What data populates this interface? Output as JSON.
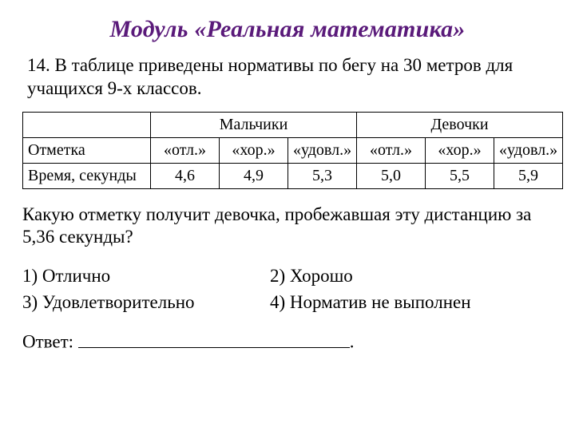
{
  "title": "Модуль «Реальная математика»",
  "intro": "14. В таблице приведены нормативы по бегу на 30 метров для учащихся 9-х классов.",
  "table": {
    "group_headers": [
      "Мальчики",
      "Девочки"
    ],
    "row_labels": [
      "Отметка",
      "Время, секунды"
    ],
    "grades_boys": [
      "«отл.»",
      "«хор.»",
      "«удовл.»"
    ],
    "grades_girls": [
      "«отл.»",
      "«хор.»",
      "«удовл.»"
    ],
    "times_boys": [
      "4,6",
      "4,9",
      "5,3"
    ],
    "times_girls": [
      "5,0",
      "5,5",
      "5,9"
    ]
  },
  "question": "Какую отметку получит девочка, пробежавшая эту дистанцию за 5,36 секунды?",
  "options": {
    "o1": "1)  Отлично",
    "o2": "2) Хорошо",
    "o3": "3)  Удовлетворительно",
    "o4": "4) Норматив не выполнен"
  },
  "answer_label": "Ответ:",
  "answer_trailing": "."
}
